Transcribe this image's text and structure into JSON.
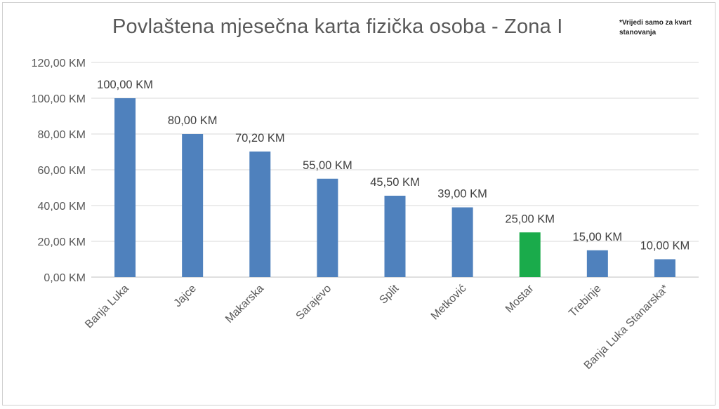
{
  "chart_data": {
    "type": "bar",
    "title": "Povlaštena mjesečna karta fizička osoba - Zona I",
    "note": "*Vrijedi samo za kvart stanovanja",
    "categories": [
      "Banja Luka",
      "Jajce",
      "Makarska",
      "Sarajevo",
      "Split",
      "Metković",
      "Mostar",
      "Trebinje",
      "Banja Luka Stanarska*"
    ],
    "values": [
      100.0,
      80.0,
      70.2,
      55.0,
      45.5,
      39.0,
      25.0,
      15.0,
      10.0
    ],
    "data_labels": [
      "100,00 KM",
      "80,00 KM",
      "70,20 KM",
      "55,00 KM",
      "45,50 KM",
      "39,00 KM",
      "25,00 KM",
      "15,00 KM",
      "10,00 KM"
    ],
    "y_ticks": [
      0,
      20,
      40,
      60,
      80,
      100,
      120
    ],
    "y_tick_labels": [
      "0,00 KM",
      "20,00 KM",
      "40,00 KM",
      "60,00 KM",
      "80,00 KM",
      "100,00 KM",
      "120,00 KM"
    ],
    "ylim": [
      0,
      120
    ],
    "xlabel": "",
    "ylabel": "",
    "grid": true,
    "colors": {
      "default": "#4f81bd",
      "highlight": "#1aab4b",
      "grid": "#d9d9d9"
    },
    "highlight_index": 6
  }
}
